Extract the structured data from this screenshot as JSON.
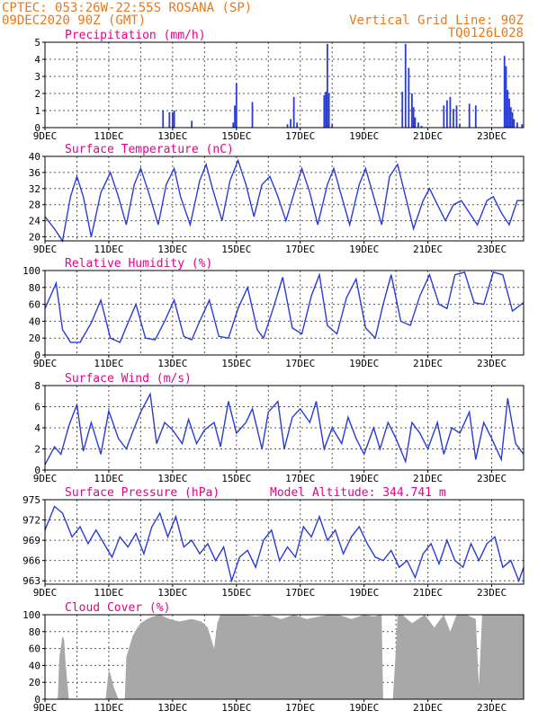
{
  "header": {
    "source": "CPTEC:",
    "coords": "053:26W-22:55S",
    "location": "ROSANA (SP)",
    "date": "09DEC2020 90Z (GMT)",
    "grid_note": "Vertical Grid Line: 90Z",
    "run_code": "TQ0126L028"
  },
  "colors": {
    "title": "#e8008a",
    "header": "#e8781a",
    "line": "#2a3cd6",
    "bar": "#2a3cd6",
    "cloud": "#a8a8a8",
    "grid": "#555555"
  },
  "chart_data": [
    {
      "type": "bar",
      "title": "Precipitation (mm/h)",
      "x_ticks": [
        "9DEC",
        "11DEC",
        "13DEC",
        "15DEC",
        "17DEC",
        "19DEC",
        "21DEC",
        "23DEC"
      ],
      "x_range": [
        9,
        24
      ],
      "ylim": [
        0,
        5
      ],
      "y_ticks": [
        0,
        1,
        2,
        3,
        4,
        5
      ],
      "x": [
        12.7,
        12.9,
        13.0,
        13.05,
        13.6,
        14.9,
        14.95,
        15.0,
        15.5,
        16.6,
        16.7,
        16.8,
        16.9,
        17.75,
        17.8,
        17.85,
        17.9,
        18.0,
        20.2,
        20.3,
        20.4,
        20.5,
        20.55,
        20.6,
        20.7,
        20.8,
        21.5,
        21.6,
        21.7,
        21.8,
        21.9,
        22.0,
        22.3,
        22.5,
        23.4,
        23.45,
        23.5,
        23.55,
        23.6,
        23.65,
        23.7,
        23.8,
        23.95
      ],
      "values": [
        1.0,
        0.9,
        0.9,
        1.0,
        0.4,
        0.3,
        1.3,
        2.6,
        1.5,
        0.2,
        0.5,
        1.8,
        0.3,
        1.9,
        2.1,
        4.9,
        2.0,
        0.2,
        2.1,
        4.9,
        3.5,
        2.0,
        1.2,
        0.6,
        0.3,
        0.1,
        1.3,
        1.6,
        1.8,
        1.1,
        1.3,
        0.2,
        1.4,
        1.3,
        4.2,
        3.6,
        2.2,
        1.7,
        1.2,
        0.9,
        0.5,
        0.3,
        0.2
      ]
    },
    {
      "type": "line",
      "title": "Surface Temperature (nC)",
      "x_ticks": [
        "9DEC",
        "11DEC",
        "13DEC",
        "15DEC",
        "17DEC",
        "19DEC",
        "21DEC",
        "23DEC"
      ],
      "x_range": [
        9,
        24
      ],
      "ylim": [
        19,
        40
      ],
      "y_ticks": [
        20,
        24,
        28,
        32,
        36,
        40
      ],
      "x": [
        9.0,
        9.3,
        9.55,
        9.8,
        10.0,
        10.2,
        10.45,
        10.75,
        11.05,
        11.3,
        11.55,
        11.8,
        12.0,
        12.25,
        12.55,
        12.8,
        13.05,
        13.25,
        13.55,
        13.85,
        14.05,
        14.25,
        14.55,
        14.8,
        15.05,
        15.3,
        15.55,
        15.8,
        16.05,
        16.3,
        16.55,
        16.85,
        17.05,
        17.3,
        17.55,
        17.85,
        18.05,
        18.3,
        18.55,
        18.85,
        19.05,
        19.3,
        19.55,
        19.8,
        20.05,
        20.3,
        20.55,
        20.85,
        21.05,
        21.3,
        21.55,
        21.8,
        22.05,
        22.3,
        22.55,
        22.85,
        23.05,
        23.3,
        23.55,
        23.8,
        24.0
      ],
      "values": [
        25,
        22,
        19,
        30,
        35,
        30,
        20,
        31,
        36,
        30,
        23,
        33,
        37,
        31,
        23,
        33,
        37,
        30,
        23,
        34,
        38,
        32,
        24,
        34,
        39,
        33,
        25,
        33,
        35,
        30,
        24,
        32,
        37,
        31,
        23,
        33,
        37,
        30,
        23,
        33,
        37,
        30,
        23,
        35,
        38,
        30,
        22,
        29,
        32,
        28,
        24,
        28,
        29,
        26,
        23,
        29,
        30,
        26,
        23,
        29,
        29
      ]
    },
    {
      "type": "line",
      "title": "Relative Humidity (%)",
      "x_ticks": [
        "9DEC",
        "11DEC",
        "13DEC",
        "15DEC",
        "17DEC",
        "19DEC",
        "21DEC",
        "23DEC"
      ],
      "x_range": [
        9,
        24
      ],
      "ylim": [
        0,
        100
      ],
      "y_ticks": [
        0,
        20,
        40,
        60,
        80,
        100
      ],
      "x": [
        9.0,
        9.35,
        9.55,
        9.8,
        10.1,
        10.45,
        10.75,
        11.05,
        11.35,
        11.6,
        11.85,
        12.15,
        12.45,
        12.75,
        13.05,
        13.35,
        13.6,
        13.85,
        14.15,
        14.45,
        14.75,
        15.05,
        15.35,
        15.65,
        15.85,
        16.15,
        16.45,
        16.75,
        17.05,
        17.35,
        17.6,
        17.85,
        18.15,
        18.45,
        18.75,
        19.05,
        19.35,
        19.6,
        19.85,
        20.15,
        20.45,
        20.75,
        21.05,
        21.35,
        21.6,
        21.85,
        22.15,
        22.45,
        22.75,
        23.05,
        23.35,
        23.65,
        24.0
      ],
      "values": [
        55,
        85,
        30,
        15,
        15,
        38,
        65,
        20,
        15,
        38,
        60,
        20,
        18,
        40,
        65,
        22,
        18,
        40,
        65,
        22,
        20,
        55,
        80,
        30,
        20,
        55,
        92,
        32,
        25,
        70,
        95,
        35,
        25,
        68,
        90,
        32,
        20,
        60,
        95,
        40,
        35,
        70,
        95,
        60,
        55,
        95,
        98,
        62,
        60,
        98,
        95,
        52,
        62
      ]
    },
    {
      "type": "line",
      "title": "Surface Wind (m/s)",
      "x_ticks": [
        "9DEC",
        "11DEC",
        "13DEC",
        "15DEC",
        "17DEC",
        "19DEC",
        "21DEC",
        "23DEC"
      ],
      "x_range": [
        9,
        24
      ],
      "ylim": [
        0,
        8
      ],
      "y_ticks": [
        0,
        2,
        4,
        6,
        8
      ],
      "x": [
        9.0,
        9.3,
        9.5,
        9.75,
        10.0,
        10.2,
        10.45,
        10.75,
        11.0,
        11.3,
        11.55,
        11.8,
        12.0,
        12.3,
        12.5,
        12.75,
        13.0,
        13.3,
        13.5,
        13.75,
        14.0,
        14.3,
        14.5,
        14.75,
        15.0,
        15.3,
        15.5,
        15.8,
        16.0,
        16.3,
        16.5,
        16.75,
        17.0,
        17.3,
        17.5,
        17.75,
        18.0,
        18.3,
        18.5,
        18.75,
        19.0,
        19.3,
        19.5,
        19.75,
        20.0,
        20.3,
        20.5,
        20.75,
        21.0,
        21.3,
        21.5,
        21.75,
        22.0,
        22.3,
        22.5,
        22.75,
        23.0,
        23.3,
        23.5,
        23.75,
        24.0
      ],
      "values": [
        0.5,
        2.2,
        1.5,
        4.2,
        6.2,
        1.8,
        4.5,
        1.5,
        5.6,
        3.0,
        2.0,
        4.0,
        5.5,
        7.2,
        2.5,
        4.5,
        3.8,
        2.5,
        4.8,
        2.5,
        3.8,
        4.5,
        2.2,
        6.5,
        3.5,
        4.5,
        5.8,
        2.0,
        5.5,
        6.5,
        2.0,
        5.0,
        5.8,
        4.5,
        6.5,
        2.0,
        4.0,
        2.5,
        5.0,
        3.0,
        1.5,
        4.0,
        2.0,
        4.5,
        3.0,
        0.8,
        4.5,
        3.5,
        2.0,
        4.5,
        1.5,
        4.0,
        3.5,
        5.5,
        1.0,
        4.5,
        3.0,
        1.0,
        6.8,
        2.5,
        1.5
      ]
    },
    {
      "type": "line",
      "title": "Surface Pressure (hPa)",
      "annotation": "Model Altitude: 344.741 m",
      "x_ticks": [
        "9DEC",
        "11DEC",
        "13DEC",
        "15DEC",
        "17DEC",
        "19DEC",
        "21DEC",
        "23DEC"
      ],
      "x_range": [
        9,
        24
      ],
      "ylim": [
        962.5,
        975
      ],
      "y_ticks": [
        963,
        966,
        969,
        972,
        975
      ],
      "x": [
        9.0,
        9.3,
        9.55,
        9.85,
        10.1,
        10.35,
        10.6,
        10.85,
        11.1,
        11.35,
        11.6,
        11.85,
        12.1,
        12.35,
        12.6,
        12.85,
        13.1,
        13.35,
        13.6,
        13.85,
        14.1,
        14.35,
        14.6,
        14.85,
        15.1,
        15.35,
        15.6,
        15.85,
        16.1,
        16.35,
        16.6,
        16.85,
        17.1,
        17.35,
        17.6,
        17.85,
        18.1,
        18.35,
        18.6,
        18.85,
        19.1,
        19.35,
        19.6,
        19.85,
        20.1,
        20.35,
        20.6,
        20.85,
        21.1,
        21.35,
        21.6,
        21.85,
        22.1,
        22.35,
        22.6,
        22.85,
        23.1,
        23.35,
        23.6,
        23.85,
        24.0
      ],
      "values": [
        970.5,
        974,
        973,
        969.5,
        971,
        968.5,
        970.5,
        968.5,
        966.5,
        969.5,
        968,
        970,
        967,
        971,
        973,
        969.5,
        972.5,
        968,
        969,
        967,
        968.5,
        966,
        968,
        963,
        966.5,
        967.5,
        965,
        969,
        970.5,
        966,
        968,
        966.5,
        971,
        969.5,
        972.5,
        969,
        970.5,
        967,
        969.5,
        971,
        968.5,
        966.5,
        966,
        967.5,
        965,
        966,
        963.5,
        967,
        968.5,
        965.5,
        969,
        966,
        965,
        968.5,
        966,
        968.5,
        969.5,
        965,
        966,
        963,
        965
      ]
    },
    {
      "type": "area",
      "title": "Cloud Cover (%)",
      "x_ticks": [
        "9DEC",
        "11DEC",
        "13DEC",
        "15DEC",
        "17DEC",
        "19DEC",
        "21DEC",
        "23DEC"
      ],
      "x_range": [
        9,
        24
      ],
      "ylim": [
        0,
        100
      ],
      "y_ticks": [
        0,
        20,
        40,
        60,
        80,
        100
      ],
      "x": [
        9.0,
        9.4,
        9.45,
        9.55,
        9.6,
        9.65,
        9.75,
        9.8,
        10.9,
        11.0,
        11.05,
        11.15,
        11.25,
        11.3,
        11.5,
        11.55,
        11.75,
        11.9,
        12.0,
        12.2,
        12.4,
        12.6,
        12.9,
        13.2,
        13.6,
        13.9,
        14.1,
        14.3,
        14.4,
        14.5,
        14.8,
        15.2,
        15.6,
        16.0,
        16.4,
        16.8,
        17.2,
        17.6,
        17.9,
        18.2,
        18.6,
        19.0,
        19.3,
        19.55,
        19.6,
        19.9,
        20.0,
        20.05,
        20.2,
        20.5,
        20.9,
        21.2,
        21.5,
        21.7,
        21.9,
        22.2,
        22.5,
        22.6,
        22.7,
        23.0,
        23.4,
        23.8,
        24.0
      ],
      "values": [
        0,
        0,
        50,
        75,
        70,
        40,
        0,
        0,
        0,
        35,
        30,
        15,
        5,
        0,
        0,
        50,
        75,
        85,
        90,
        95,
        98,
        100,
        95,
        92,
        95,
        92,
        85,
        60,
        90,
        100,
        100,
        100,
        98,
        100,
        95,
        100,
        95,
        98,
        100,
        100,
        95,
        100,
        98,
        100,
        0,
        0,
        60,
        100,
        100,
        90,
        100,
        85,
        100,
        80,
        100,
        100,
        95,
        15,
        100,
        100,
        100,
        100,
        100
      ]
    }
  ]
}
